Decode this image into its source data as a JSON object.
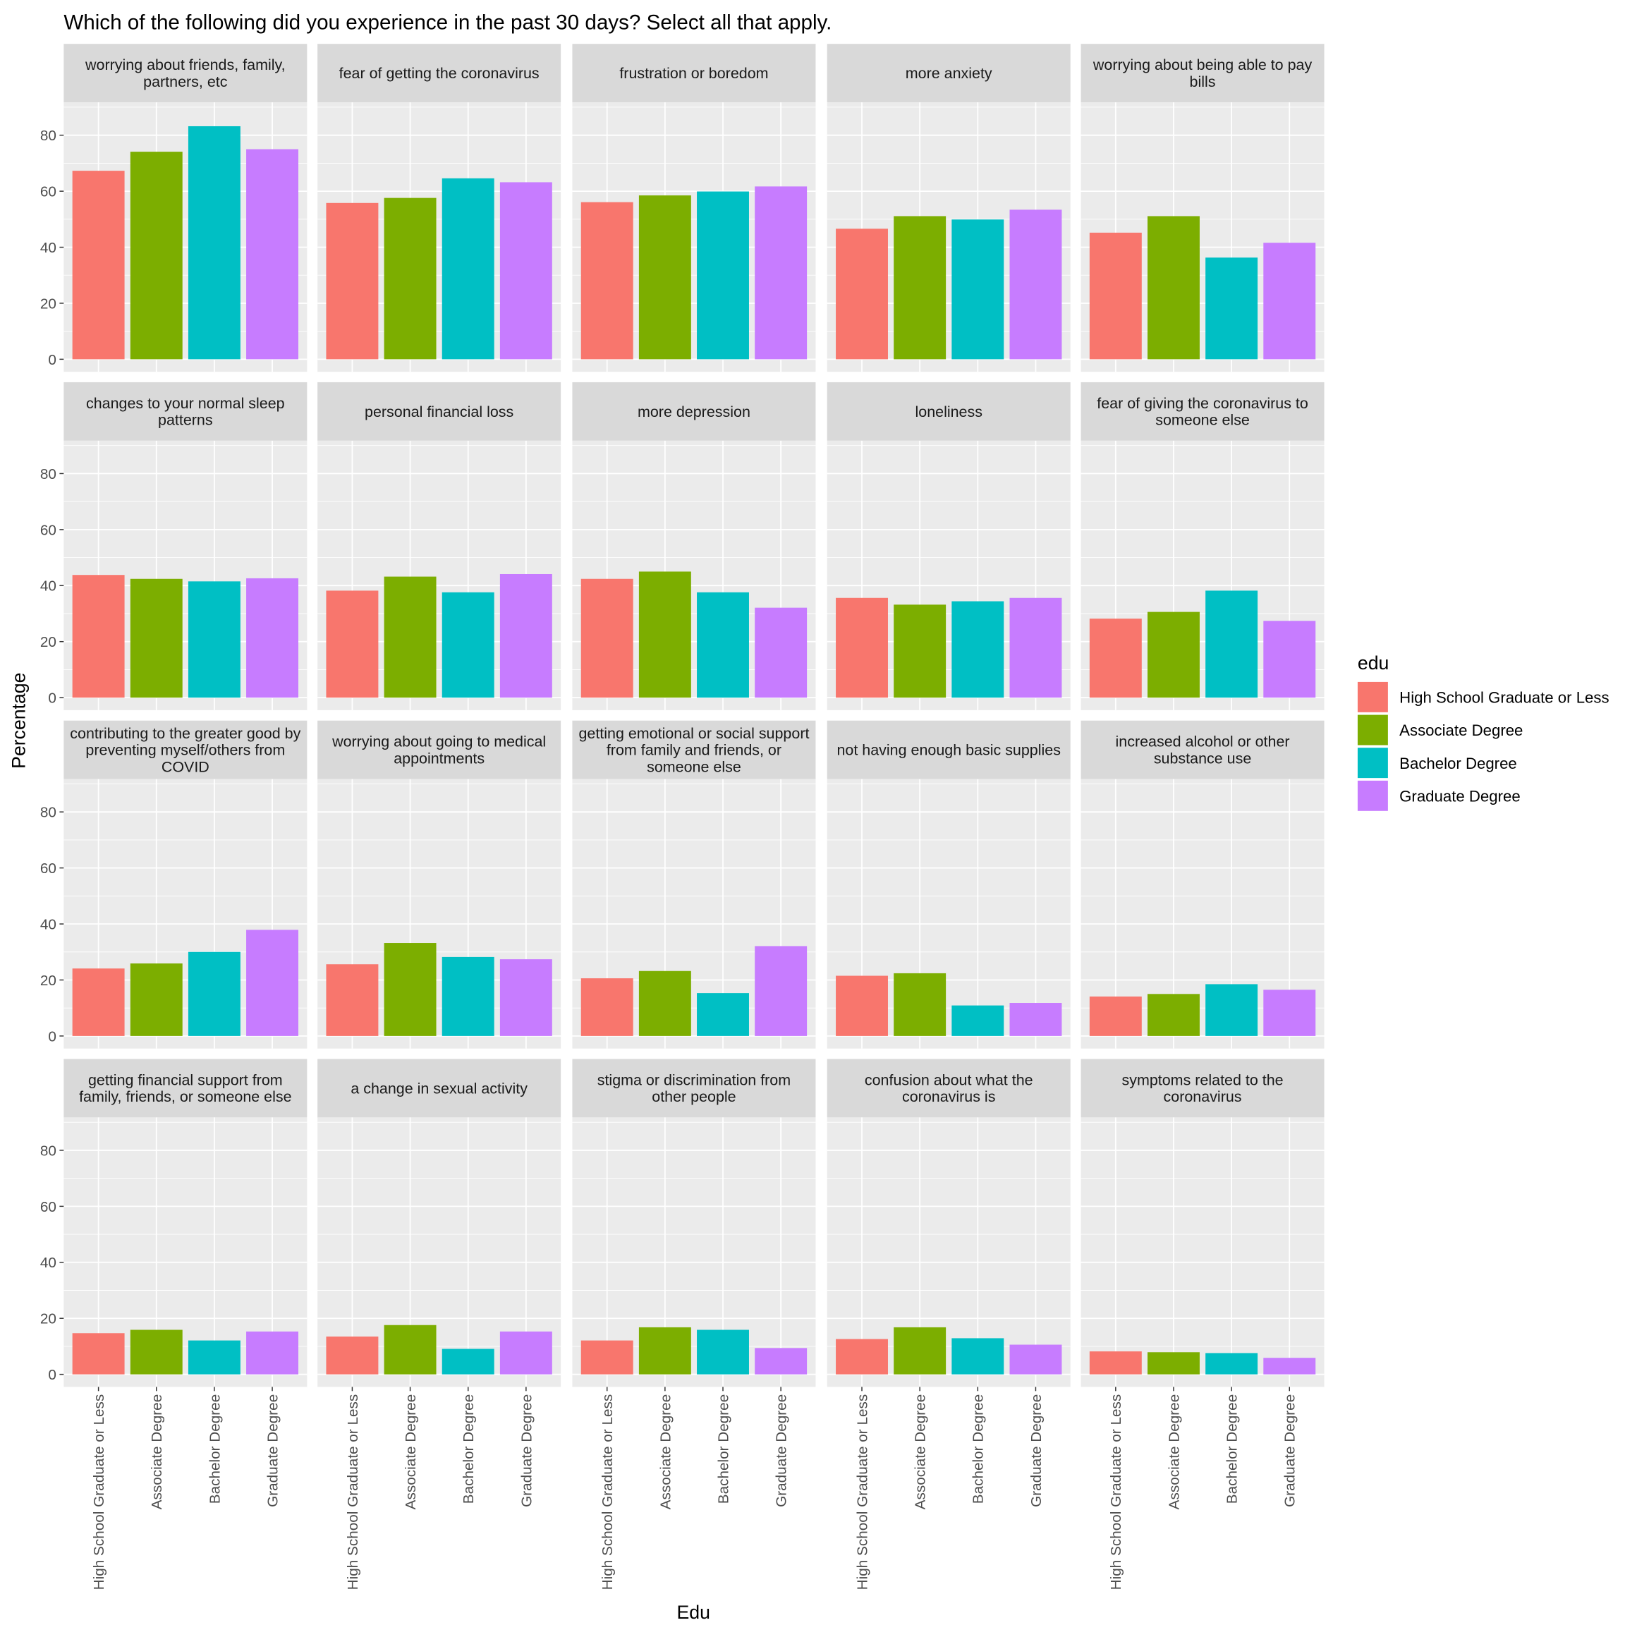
{
  "chart_data": {
    "type": "bar",
    "title": "Which of the following did you experience in the past 30 days? Select all that apply.",
    "xlabel": "Edu",
    "ylabel": "Percentage",
    "ylim": [
      0,
      88
    ],
    "yticks": [
      "0",
      "20",
      "40",
      "60",
      "80"
    ],
    "grid": true,
    "legend": {
      "title": "edu",
      "placement": "right"
    },
    "categories": [
      "High School Graduate or Less",
      "Associate Degree",
      "Bachelor Degree",
      "Graduate Degree"
    ],
    "colors": [
      "#F8766D",
      "#7CAE00",
      "#00BFC4",
      "#C77CFF"
    ],
    "facets": [
      {
        "label": [
          "worrying about friends, family,",
          "partners, etc"
        ],
        "values": [
          67.3,
          74.1,
          83.2,
          75.0
        ]
      },
      {
        "label": [
          "fear of getting the coronavirus"
        ],
        "values": [
          55.8,
          57.6,
          64.6,
          63.2
        ]
      },
      {
        "label": [
          "frustration or boredom"
        ],
        "values": [
          56.1,
          58.5,
          59.9,
          61.7
        ]
      },
      {
        "label": [
          "more anxiety"
        ],
        "values": [
          46.6,
          51.1,
          49.9,
          53.4
        ]
      },
      {
        "label": [
          "worrying about being able to",
          "pay bills"
        ],
        "values": [
          45.2,
          51.1,
          36.3,
          41.6
        ]
      },
      {
        "label": [
          "changes to your normal sleep patterns"
        ],
        "values": [
          43.8,
          42.4,
          41.5,
          42.6
        ]
      },
      {
        "label": [
          "personal financial loss"
        ],
        "values": [
          38.2,
          43.2,
          37.6,
          44.1
        ]
      },
      {
        "label": [
          "more depression"
        ],
        "values": [
          42.4,
          45.0,
          37.6,
          32.1
        ]
      },
      {
        "label": [
          "loneliness"
        ],
        "values": [
          35.6,
          33.2,
          34.4,
          35.6
        ]
      },
      {
        "label": [
          "fear of giving the coronavirus",
          "to someone else"
        ],
        "values": [
          28.2,
          30.6,
          38.2,
          27.4
        ]
      },
      {
        "label": [
          "contributing to the greater good by",
          "preventing myself/others from COVID"
        ],
        "values": [
          24.1,
          25.9,
          30.0,
          37.9
        ]
      },
      {
        "label": [
          "worrying about going to medical",
          "appointments"
        ],
        "values": [
          25.6,
          33.2,
          28.2,
          27.4
        ]
      },
      {
        "label": [
          "getting emotional or social support",
          "from family and friends, or someone else"
        ],
        "values": [
          20.6,
          23.2,
          15.3,
          32.1
        ]
      },
      {
        "label": [
          "not having enough basic supplies"
        ],
        "values": [
          21.5,
          22.4,
          10.9,
          11.8
        ]
      },
      {
        "label": [
          "increased alcohol or other substance use"
        ],
        "values": [
          14.1,
          15.0,
          18.5,
          16.5
        ]
      },
      {
        "label": [
          "getting financial support from family,",
          "friends, or someone else"
        ],
        "values": [
          14.7,
          15.9,
          12.1,
          15.3
        ]
      },
      {
        "label": [
          "a change in sexual activity"
        ],
        "values": [
          13.5,
          17.6,
          9.1,
          15.3
        ]
      },
      {
        "label": [
          "stigma or discrimination from",
          "other people"
        ],
        "values": [
          12.1,
          16.8,
          15.9,
          9.4
        ]
      },
      {
        "label": [
          "confusion about what the coronavirus is"
        ],
        "values": [
          12.6,
          16.8,
          12.9,
          10.6
        ]
      },
      {
        "label": [
          "symptoms related to the coronavirus"
        ],
        "values": [
          8.2,
          7.9,
          7.6,
          5.9
        ]
      }
    ]
  }
}
